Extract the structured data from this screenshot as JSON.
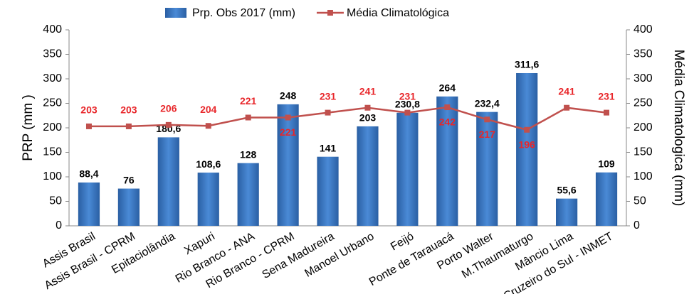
{
  "chart_data": {
    "type": "bar",
    "categories": [
      "Assis Brasil",
      "Assis Brasil - CPRM",
      "Epitaciolândia",
      "Xapuri",
      "Rio Branco - ANA",
      "Rio Branco - CPRM",
      "Sena Madureira",
      "Manoel Urbano",
      "Feijó",
      "Ponte de Tarauacá",
      "Porto Walter",
      "M.Thaumaturgo",
      "Mâncio Lima",
      "Cruzeiro do Sul - INMET"
    ],
    "series": [
      {
        "name": "Prp. Obs 2017 (mm)",
        "type": "bar",
        "color": "#2e6db4",
        "values": [
          88.4,
          76,
          180.6,
          108.6,
          128,
          248,
          141,
          203,
          230.8,
          264,
          232.4,
          311.6,
          55.6,
          109
        ],
        "value_labels": [
          "88,4",
          "76",
          "180,6",
          "108,6",
          "128",
          "248",
          "141",
          "203",
          "230,8",
          "264",
          "232,4",
          "311,6",
          "55,6",
          "109"
        ]
      },
      {
        "name": "Média Climatológica",
        "type": "line",
        "axis": "y2",
        "color": "#c0504d",
        "values": [
          203,
          203,
          206,
          204,
          221,
          221,
          231,
          241,
          231,
          242,
          217,
          196,
          241,
          231
        ]
      }
    ],
    "ylabel": "PRP (mm )",
    "y2label": "Média Climatologica (mm)",
    "ylim": [
      0,
      400
    ],
    "yticks": [
      0,
      50,
      100,
      150,
      200,
      250,
      300,
      350,
      400
    ],
    "y2lim": [
      0,
      400
    ],
    "y2ticks": [
      0,
      50,
      100,
      150,
      200,
      250,
      300,
      350,
      400
    ]
  }
}
